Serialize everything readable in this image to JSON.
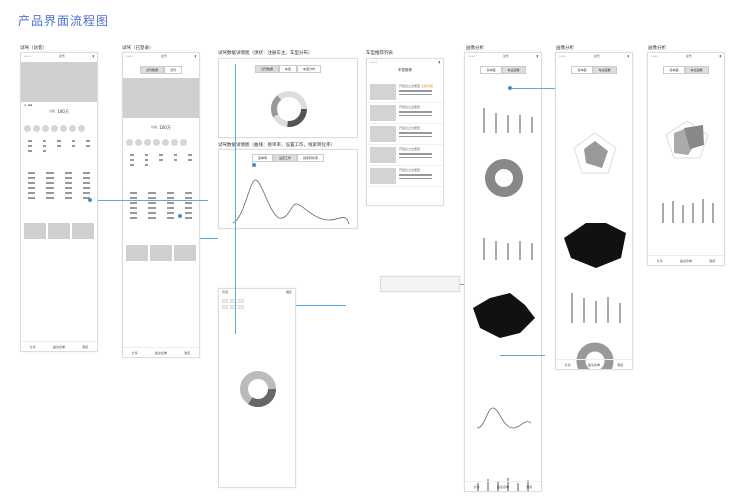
{
  "title": "产品界面流程图",
  "frames": {
    "visitor": {
      "label": "试驾（访客）",
      "nav": "试驾",
      "price_label": "价格",
      "price": "100万",
      "bottom": [
        "分享",
        "提交表单",
        "购买"
      ]
    },
    "logged": {
      "label": "试驾（已登录）",
      "nav": "试驾",
      "tabs": [
        "试驾数据",
        "试驾"
      ],
      "price_label": "价格",
      "price": "100万",
      "bottom": [
        "分享",
        "提交表单",
        "购买"
      ]
    },
    "pie_detail": {
      "label": "试驾数据详情图（饼状：注册车主，车型分布）",
      "tabs": [
        "试驾数据",
        "车型",
        "车型分布"
      ]
    },
    "curve_detail": {
      "label": "试驾数据详情图（曲线：接单率，设置工作，线索转化率）",
      "tabs": [
        "接单率",
        "设置工作",
        "线索转化率"
      ]
    },
    "recommend": {
      "label": "车型推荐列表",
      "nav": "车型推荐",
      "items": [
        "开思达之全能型",
        "开思达之全能型",
        "开思达之全能型",
        "开思达之全能型",
        "开思达之全能型"
      ],
      "badge": "全能车型"
    },
    "center": {
      "nav": "筛选",
      "confirm": "确定"
    },
    "portrait1": {
      "label": "画像分析",
      "nav": "试驾",
      "tabs": [
        "基本面",
        "车主画像"
      ],
      "bottom": [
        "分享",
        "提交表单",
        "购买"
      ]
    },
    "portrait2": {
      "label": "画像分析",
      "nav": "试驾",
      "tabs": [
        "基本面",
        "车主画像"
      ],
      "bottom": [
        "分享",
        "提交表单",
        "购买"
      ]
    },
    "portrait3": {
      "label": "画像分析",
      "nav": "试驾",
      "tabs": [
        "基本面",
        "车主画像"
      ],
      "bottom": [
        "分享",
        "提交表单",
        "购买"
      ]
    }
  },
  "colors": {
    "title": "#4a6fd8",
    "connector": "#5aa9e6",
    "accent": "#f08a24"
  }
}
